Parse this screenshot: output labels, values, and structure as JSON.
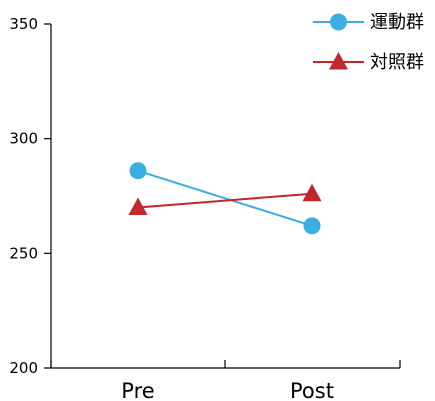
{
  "chart_data": {
    "type": "line",
    "categories": [
      "Pre",
      "Post"
    ],
    "series": [
      {
        "name": "運動群",
        "values": [
          286,
          262
        ],
        "color": "#3aaee0",
        "marker": "circle"
      },
      {
        "name": "対照群",
        "values": [
          270,
          276
        ],
        "color": "#c1272d",
        "marker": "triangle"
      }
    ],
    "ylim": [
      200,
      350
    ],
    "yticks": [
      200,
      250,
      300,
      350
    ],
    "ytick_labels": [
      "200",
      "250",
      "300",
      "350"
    ],
    "title": "",
    "xlabel": "",
    "ylabel": "",
    "grid": false,
    "legend_position": "top-right"
  }
}
